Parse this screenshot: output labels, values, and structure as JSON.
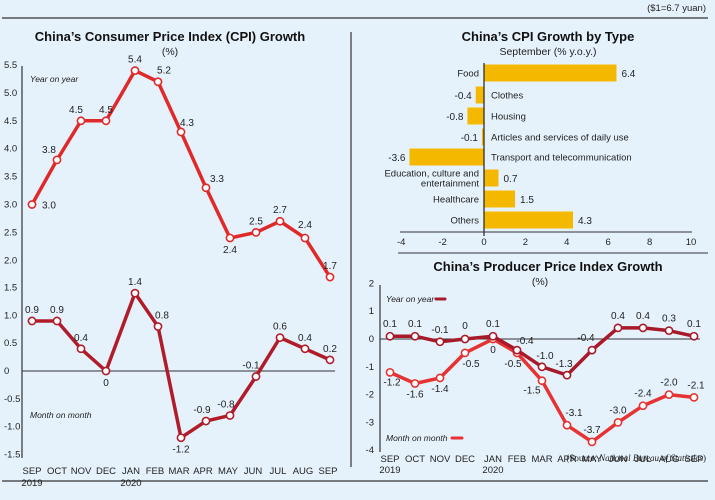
{
  "header": {
    "exchange_note": "($1=6.7 yuan)",
    "source_prefix": "(Source: ",
    "source_name": "National Bureau of Statistics",
    "source_suffix": ")"
  },
  "colors": {
    "background": "#e6f2fb",
    "yoy_cpi": "#e02a2a",
    "mom_cpi": "#b01c2a",
    "ppi_yoy": "#a8192a",
    "ppi_mom": "#e63232",
    "bar": "#f5b800",
    "axis": "#333333"
  },
  "chart_data": [
    {
      "id": "cpi",
      "type": "line",
      "title": "China’s Consumer Price Index (CPI) Growth",
      "subtitle": "(%)",
      "categories": [
        "SEP",
        "OCT",
        "NOV",
        "DEC",
        "JAN",
        "FEB",
        "MAR",
        "APR",
        "MAY",
        "JUN",
        "JUL",
        "AUG",
        "SEP"
      ],
      "category_years": {
        "0": "2019",
        "4": "2020"
      },
      "panels": [
        {
          "name": "Year on year",
          "ylim": [
            2.0,
            5.5
          ],
          "yticks": [
            "5.5",
            "5.0",
            "4.5",
            "4.0",
            "3.5",
            "3.0",
            "2.5",
            "2.0"
          ],
          "ytick_values": [
            5.5,
            5.0,
            4.5,
            4.0,
            3.5,
            3.0,
            2.5,
            2.0
          ],
          "values": [
            3.0,
            3.8,
            4.5,
            4.5,
            5.4,
            5.2,
            4.3,
            3.3,
            2.4,
            2.5,
            2.7,
            2.4,
            1.7
          ],
          "labels": [
            "3.0",
            "3.8",
            "4.5",
            "4.5",
            "5.4",
            "5.2",
            "4.3",
            "3.3",
            "2.4",
            "2.5",
            "2.7",
            "2.4",
            "1.7"
          ]
        },
        {
          "name": "Month on month",
          "ylim": [
            -1.5,
            1.5
          ],
          "yticks": [
            "1.5",
            "1.0",
            "0.5",
            "0",
            "-0.5",
            "-1.0",
            "-1.5"
          ],
          "ytick_values": [
            1.5,
            1.0,
            0.5,
            0,
            -0.5,
            -1.0,
            -1.5
          ],
          "values": [
            0.9,
            0.9,
            0.4,
            0,
            1.4,
            0.8,
            -1.2,
            -0.9,
            -0.8,
            -0.1,
            0.6,
            0.4,
            0.2
          ],
          "labels": [
            "0.9",
            "0.9",
            "0.4",
            "0",
            "1.4",
            "0.8",
            "-1.2",
            "-0.9",
            "-0.8",
            "-0.1",
            "0.6",
            "0.4",
            "0.2"
          ]
        }
      ]
    },
    {
      "id": "cpi_by_type",
      "type": "bar",
      "orientation": "horizontal",
      "title": "China’s CPI Growth by Type",
      "subtitle": "September (% y.o.y.)",
      "categories": [
        "Food",
        "Clothes",
        "Housing",
        "Articles and services of daily use",
        "Transport and telecommunication",
        "Education, culture and entertainment",
        "Healthcare",
        "Others"
      ],
      "category_lines": [
        [
          "Food"
        ],
        [
          "Clothes"
        ],
        [
          "Housing"
        ],
        [
          "Articles and services of daily use"
        ],
        [
          "Transport and telecommunication"
        ],
        [
          "Education, culture and",
          "entertainment"
        ],
        [
          "Healthcare"
        ],
        [
          "Others"
        ]
      ],
      "values": [
        6.4,
        -0.4,
        -0.8,
        -0.1,
        -3.6,
        0.7,
        1.5,
        4.3
      ],
      "labels": [
        "6.4",
        "-0.4",
        "-0.8",
        "-0.1",
        "-3.6",
        "0.7",
        "1.5",
        "4.3"
      ],
      "xlim": [
        -4,
        10
      ],
      "xticks": [
        "-4",
        "-2",
        "0",
        "2",
        "4",
        "6",
        "8",
        "10"
      ],
      "xtick_values": [
        -4,
        -2,
        0,
        2,
        4,
        6,
        8,
        10
      ]
    },
    {
      "id": "ppi",
      "type": "line",
      "title": "China’s Producer Price Index Growth",
      "subtitle": "(%)",
      "categories": [
        "SEP",
        "OCT",
        "NOV",
        "DEC",
        "JAN",
        "FEB",
        "MAR",
        "APR",
        "MAY",
        "JUN",
        "JUL",
        "AUG",
        "SEP"
      ],
      "category_years": {
        "0": "2019",
        "4": "2020"
      },
      "ylim": [
        -4,
        2
      ],
      "yticks": [
        "2",
        "1",
        "0",
        "-1",
        "-2",
        "-3",
        "-4"
      ],
      "ytick_values": [
        2,
        1,
        0,
        -1,
        -2,
        -3,
        -4
      ],
      "series": [
        {
          "name": "Year on year",
          "values": [
            0.1,
            0.1,
            -0.1,
            0,
            0.1,
            -0.4,
            -1.0,
            -1.3,
            -0.4,
            0.4,
            0.4,
            0.3,
            0.1
          ],
          "labels": [
            "0.1",
            "0.1",
            "-0.1",
            "0",
            "0.1",
            "-0.4",
            "-1.0",
            "-1.3",
            "-0.4",
            "0.4",
            "0.4",
            "0.3",
            "0.1"
          ]
        },
        {
          "name": "Month on month",
          "values": [
            -1.2,
            -1.6,
            -1.4,
            -0.5,
            0,
            -0.5,
            -1.5,
            -3.1,
            -3.7,
            -3.0,
            -2.4,
            -2.0,
            -2.1
          ],
          "labels": [
            "-1.2",
            "-1.6",
            "-1.4",
            "-0.5",
            "0",
            "-0.5",
            "-1.5",
            "-3.1",
            "-3.7",
            "-3.0",
            "-2.4",
            "-2.0",
            "-2.1"
          ]
        }
      ]
    }
  ]
}
